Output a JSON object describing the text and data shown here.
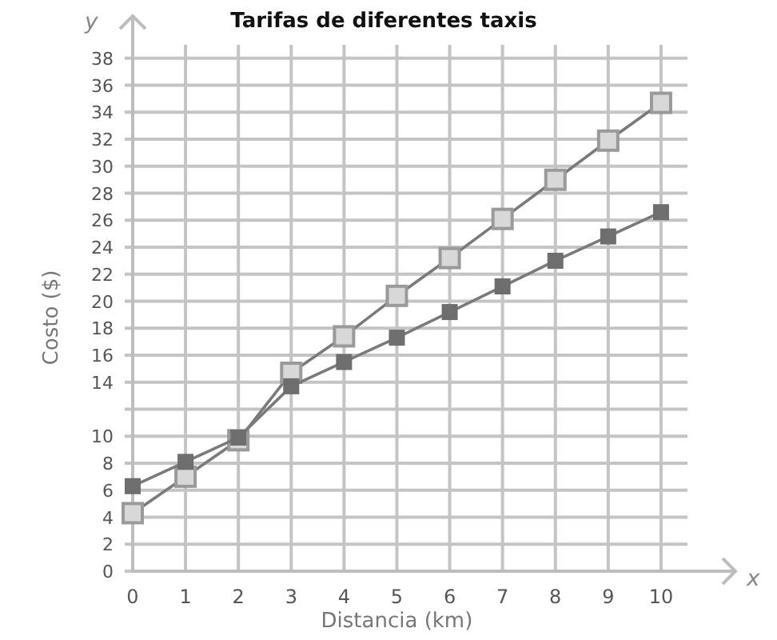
{
  "chart_data": {
    "type": "line",
    "title": "Tarifas de diferentes taxis",
    "xlabel": "Distancia (km)",
    "ylabel": "Costo ($)",
    "annotations": [
      "x",
      "y"
    ],
    "x": [
      0,
      1,
      2,
      3,
      4,
      5,
      6,
      7,
      8,
      9,
      10
    ],
    "series": [
      {
        "color": "#9a9a9a",
        "values": [
          4.3,
          7,
          9.7,
          14.7,
          17.4,
          20.4,
          23.2,
          26.1,
          29,
          31.9,
          34.7
        ]
      },
      {
        "color": "#6e6e6e",
        "values": [
          6.3,
          8.1,
          9.9,
          13.7,
          15.5,
          17.3,
          19.2,
          21.1,
          23,
          24.8,
          26.6
        ]
      }
    ],
    "xlim": [
      0,
      10.5
    ],
    "ylim": [
      0,
      39
    ],
    "xticks": [
      0,
      1,
      2,
      3,
      4,
      5,
      6,
      7,
      8,
      9,
      10
    ],
    "yticks": [
      0,
      2,
      4,
      6,
      8,
      10,
      {
        "value": 12,
        "label": null
      },
      14,
      16,
      18,
      20,
      22,
      24,
      26,
      28,
      30,
      32,
      34,
      36,
      38
    ],
    "grid": true,
    "marker": "square",
    "line_style": "solid"
  }
}
